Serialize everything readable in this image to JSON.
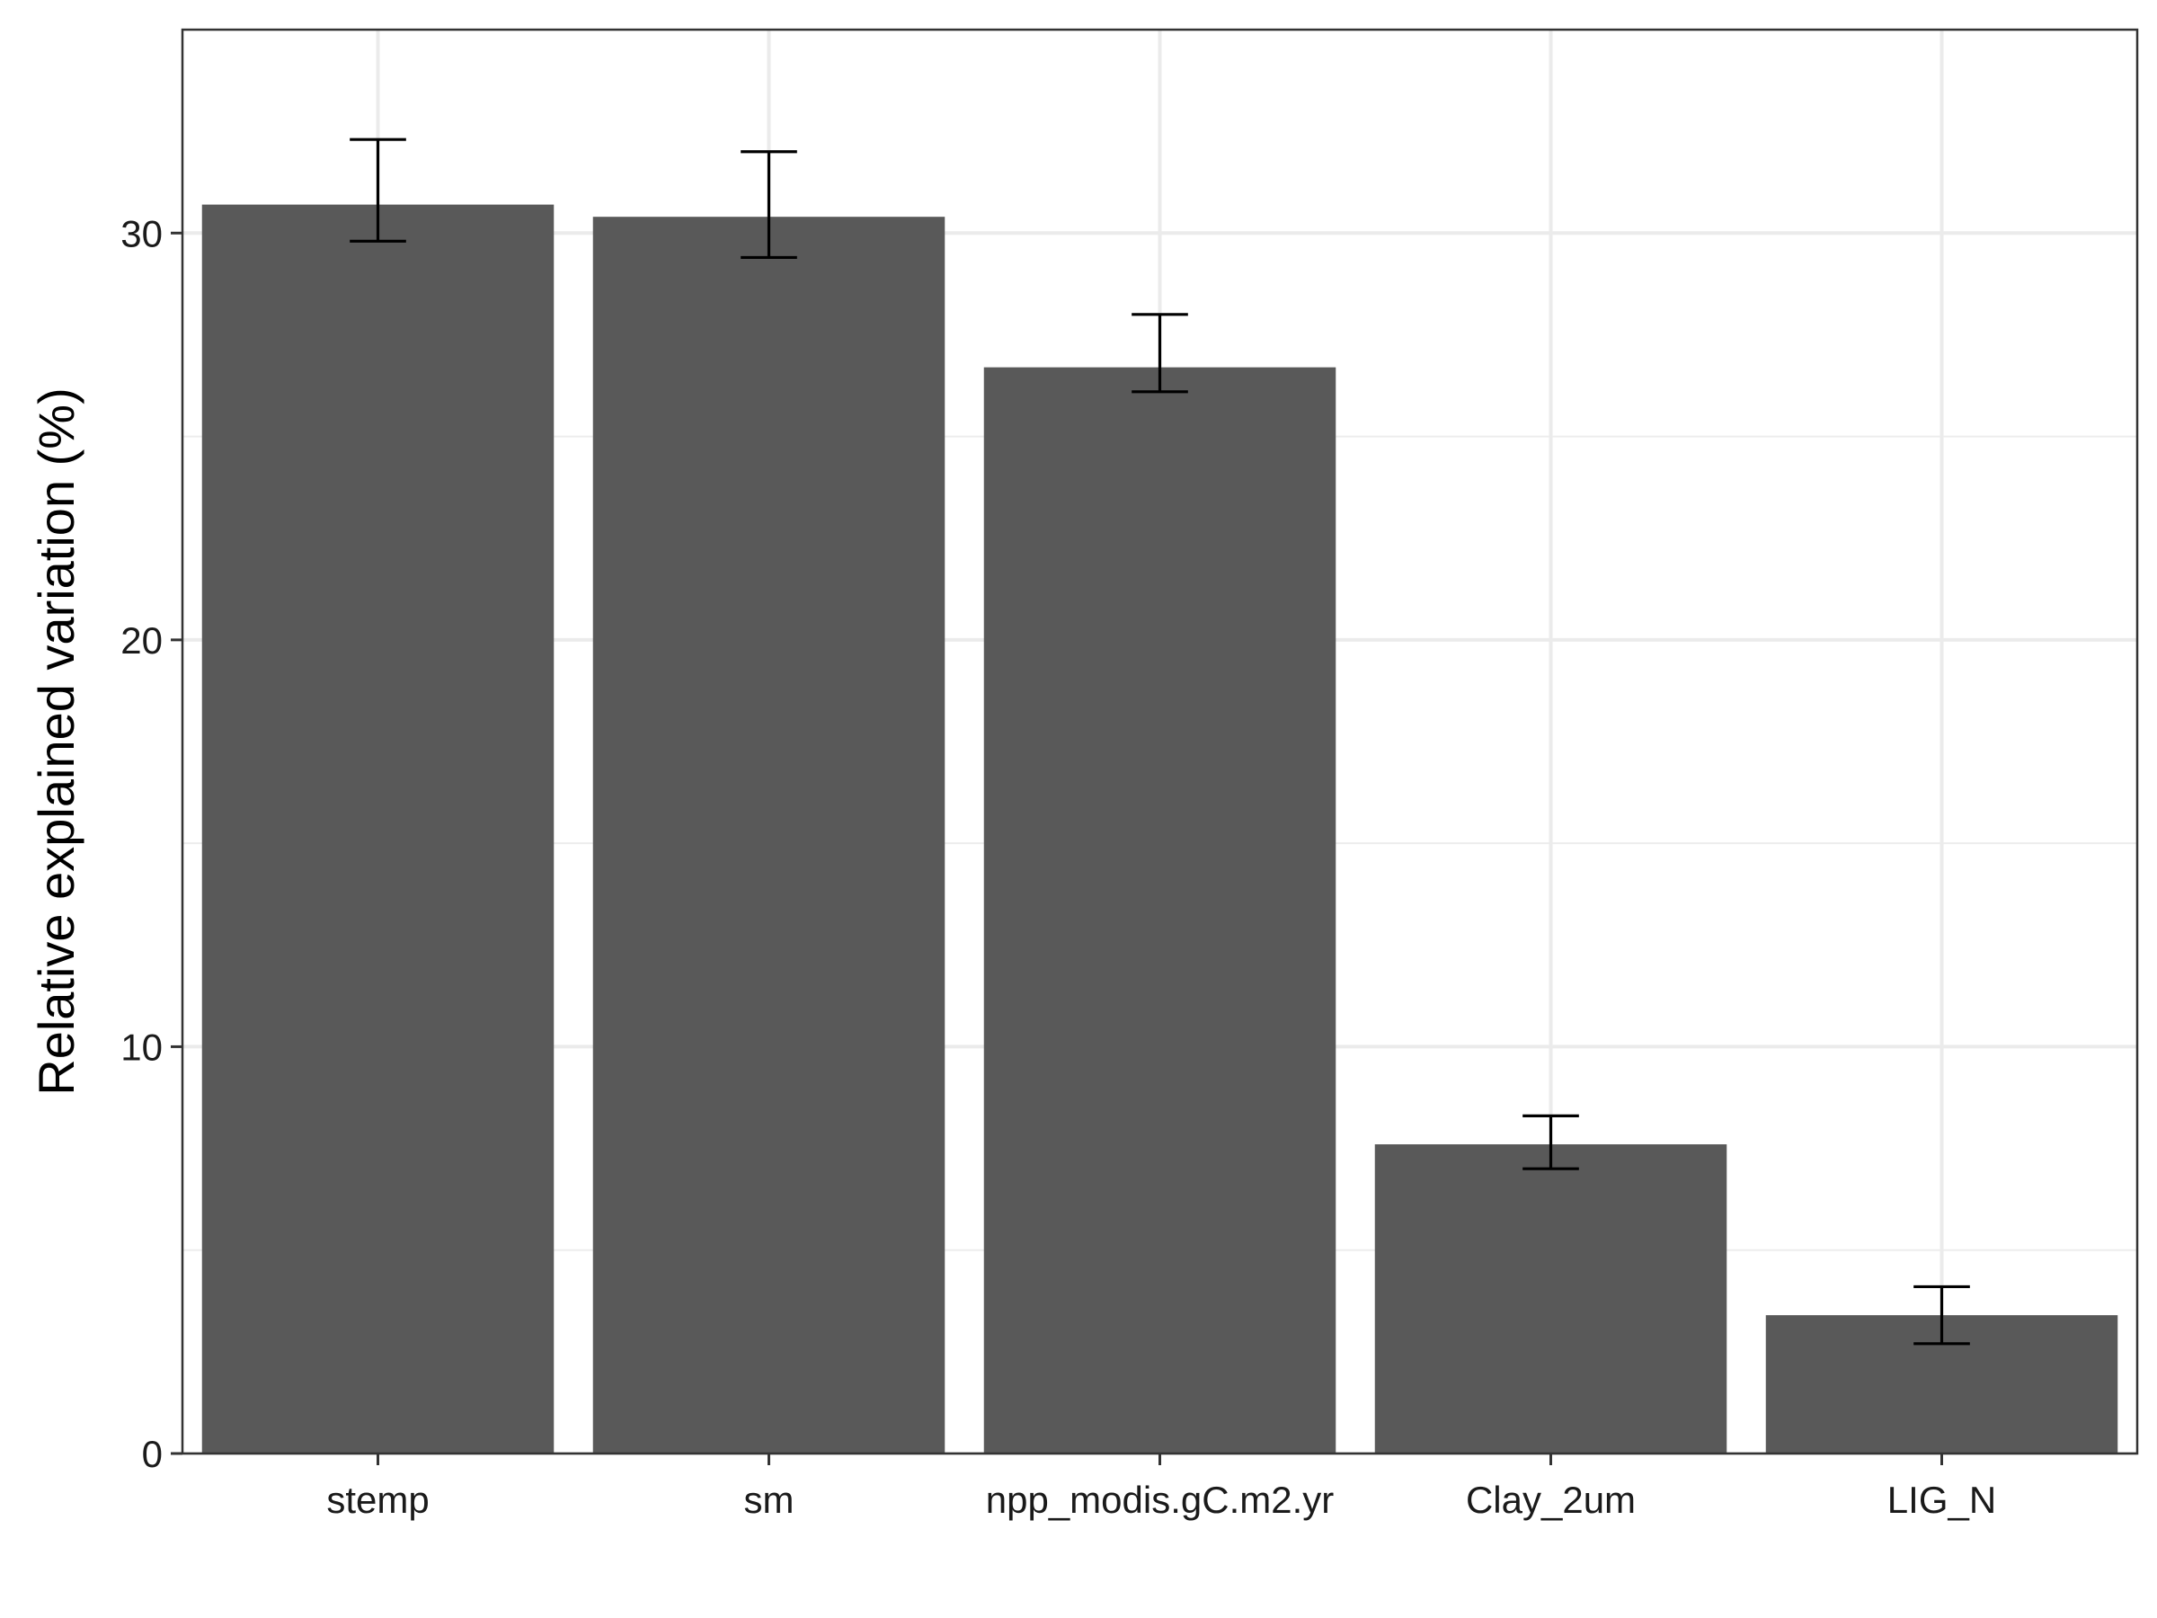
{
  "chart_data": {
    "type": "bar",
    "title": "",
    "xlabel": "",
    "ylabel": "Relative explained variation (%)",
    "categories": [
      "stemp",
      "sm",
      "npp_modis.gC.m2.yr",
      "Clay_2um",
      "LIG_N"
    ],
    "values": [
      30.7,
      30.4,
      26.7,
      7.6,
      3.4
    ],
    "error_low": [
      29.8,
      29.4,
      26.1,
      7.0,
      2.7
    ],
    "error_high": [
      32.3,
      32.0,
      28.0,
      8.3,
      4.1
    ],
    "yticks": [
      0,
      10,
      20,
      30
    ],
    "ylim": [
      0,
      35
    ],
    "grid": true,
    "bar_color": "#595959",
    "error_bar_color": "#000000"
  }
}
